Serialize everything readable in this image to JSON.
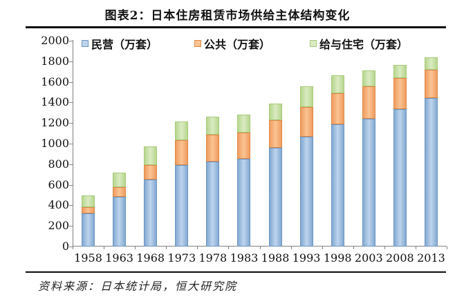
{
  "title": "图表2：日本住房租赁市场供给主体结构变化",
  "source": "资料来源：日本统计局，恒大研究院",
  "chart_data": {
    "type": "bar",
    "stacked": true,
    "title": "图表2：日本住房租赁市场供给主体结构变化",
    "categories": [
      "1958",
      "1963",
      "1968",
      "1973",
      "1978",
      "1983",
      "1988",
      "1993",
      "1998",
      "2003",
      "2008",
      "2013"
    ],
    "series": [
      {
        "name": "民营（万套）",
        "values": [
          320,
          485,
          650,
          795,
          825,
          855,
          960,
          1065,
          1190,
          1245,
          1335,
          1445
        ],
        "color_center": "#bed4ed",
        "color_edge": "#83a9d2",
        "color_border": "#6b94c0"
      },
      {
        "name": "公共（万套）",
        "values": [
          65,
          90,
          145,
          240,
          260,
          255,
          265,
          290,
          300,
          315,
          300,
          275
        ],
        "color_center": "#fac493",
        "color_edge": "#f09c60",
        "color_border": "#e08845"
      },
      {
        "name": "给与住宅（万套）",
        "values": [
          115,
          140,
          175,
          180,
          175,
          175,
          165,
          200,
          175,
          150,
          130,
          120
        ],
        "color_center": "#daebc2",
        "color_edge": "#b8d68f",
        "color_border": "#a6ca79"
      }
    ],
    "ylim": [
      0,
      2000
    ],
    "ytick_step": 200,
    "yticks": [
      0,
      200,
      400,
      600,
      800,
      1000,
      1200,
      1400,
      1600,
      1800,
      2000
    ],
    "grid": false,
    "legend_position": "top-inside",
    "axis_color": "#808080"
  }
}
